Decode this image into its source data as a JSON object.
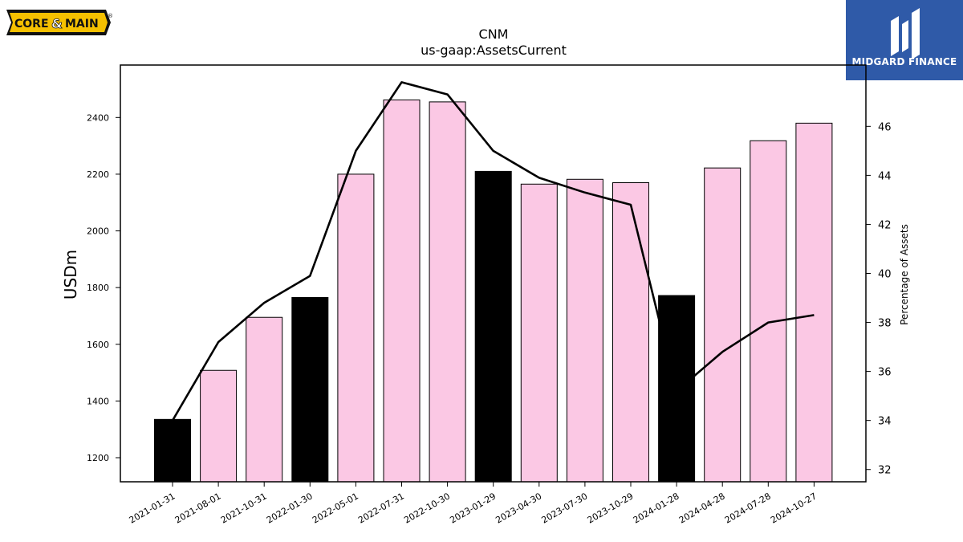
{
  "logos": {
    "left": {
      "text_core": "CORE",
      "text_amp": "&",
      "text_main": "MAIN",
      "reg": "®"
    },
    "right": {
      "text": "MIDGARD FINANCE"
    }
  },
  "chart_data": {
    "type": "bar",
    "title": "CNM",
    "subtitle": "us-gaap:AssetsCurrent",
    "ylabel": "USDm",
    "y2label": "Percentage of Assets",
    "ylim": [
      1115,
      2585
    ],
    "y2lim": [
      31.5,
      48.5
    ],
    "yticks": [
      1200,
      1400,
      1600,
      1800,
      2000,
      2200,
      2400
    ],
    "y2ticks": [
      32,
      34,
      36,
      38,
      40,
      42,
      44,
      46
    ],
    "categories": [
      "2021-01-31",
      "2021-08-01",
      "2021-10-31",
      "2022-01-30",
      "2022-05-01",
      "2022-07-31",
      "2022-10-30",
      "2023-01-29",
      "2023-04-30",
      "2023-07-30",
      "2023-10-29",
      "2024-01-28",
      "2024-04-28",
      "2024-07-28",
      "2024-10-27"
    ],
    "series": [
      {
        "type": "bar",
        "values": [
          1335,
          1508,
          1695,
          1765,
          2200,
          2462,
          2455,
          2210,
          2165,
          2182,
          2170,
          1772,
          2222,
          2318,
          2380
        ]
      },
      {
        "type": "line",
        "axis": "right",
        "values": [
          34.0,
          37.2,
          38.8,
          39.9,
          45.0,
          47.8,
          47.3,
          45.0,
          43.9,
          43.3,
          42.8,
          35.2,
          36.8,
          38.0,
          38.3
        ]
      }
    ],
    "bar_colors": [
      "#000000",
      "#fbc8e4",
      "#fbc8e4",
      "#000000",
      "#fbc8e4",
      "#fbc8e4",
      "#fbc8e4",
      "#000000",
      "#fbc8e4",
      "#fbc8e4",
      "#fbc8e4",
      "#000000",
      "#fbc8e4",
      "#fbc8e4",
      "#fbc8e4"
    ],
    "line_color": "#000000",
    "grid": false,
    "legend": "none"
  }
}
